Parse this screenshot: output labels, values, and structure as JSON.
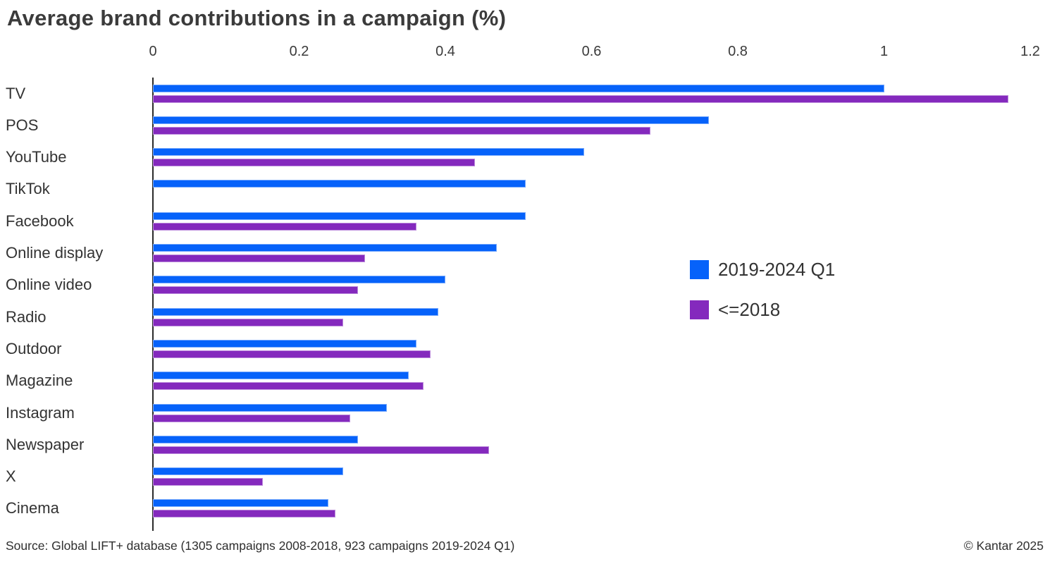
{
  "chart_data": {
    "type": "bar",
    "orientation": "horizontal",
    "title": "Average brand contributions in a campaign (%)",
    "xlabel": "",
    "ylabel": "",
    "xlim": [
      0,
      1.2
    ],
    "x_tick_values": [
      0,
      0.2,
      0.4,
      0.6,
      0.8,
      1,
      1.2
    ],
    "x_tick_labels": [
      "0",
      "0.2",
      "0.4",
      "0.6",
      "0.8",
      "1",
      "1.2"
    ],
    "x_axis_position": "top",
    "grid": false,
    "legend_position": "center-right",
    "categories": [
      "TV",
      "POS",
      "YouTube",
      "TikTok",
      "Facebook",
      "Online display",
      "Online video",
      "Radio",
      "Outdoor",
      "Magazine",
      "Instagram",
      "Newspaper",
      "X",
      "Cinema"
    ],
    "series": [
      {
        "name": "2019-2024 Q1",
        "color": "#0662fa",
        "values": [
          1.0,
          0.76,
          0.59,
          0.51,
          0.51,
          0.47,
          0.4,
          0.39,
          0.36,
          0.35,
          0.32,
          0.28,
          0.26,
          0.24
        ]
      },
      {
        "name": "<=2018",
        "color": "#8429bd",
        "values": [
          1.17,
          0.68,
          0.44,
          null,
          0.36,
          0.29,
          0.28,
          0.26,
          0.38,
          0.37,
          0.27,
          0.46,
          0.15,
          0.25
        ]
      }
    ]
  },
  "footer": {
    "source": "Source: Global LIFT+ database (1305 campaigns 2008-2018, 923 campaigns 2019-2024 Q1)",
    "copyright": "© Kantar 2025"
  }
}
